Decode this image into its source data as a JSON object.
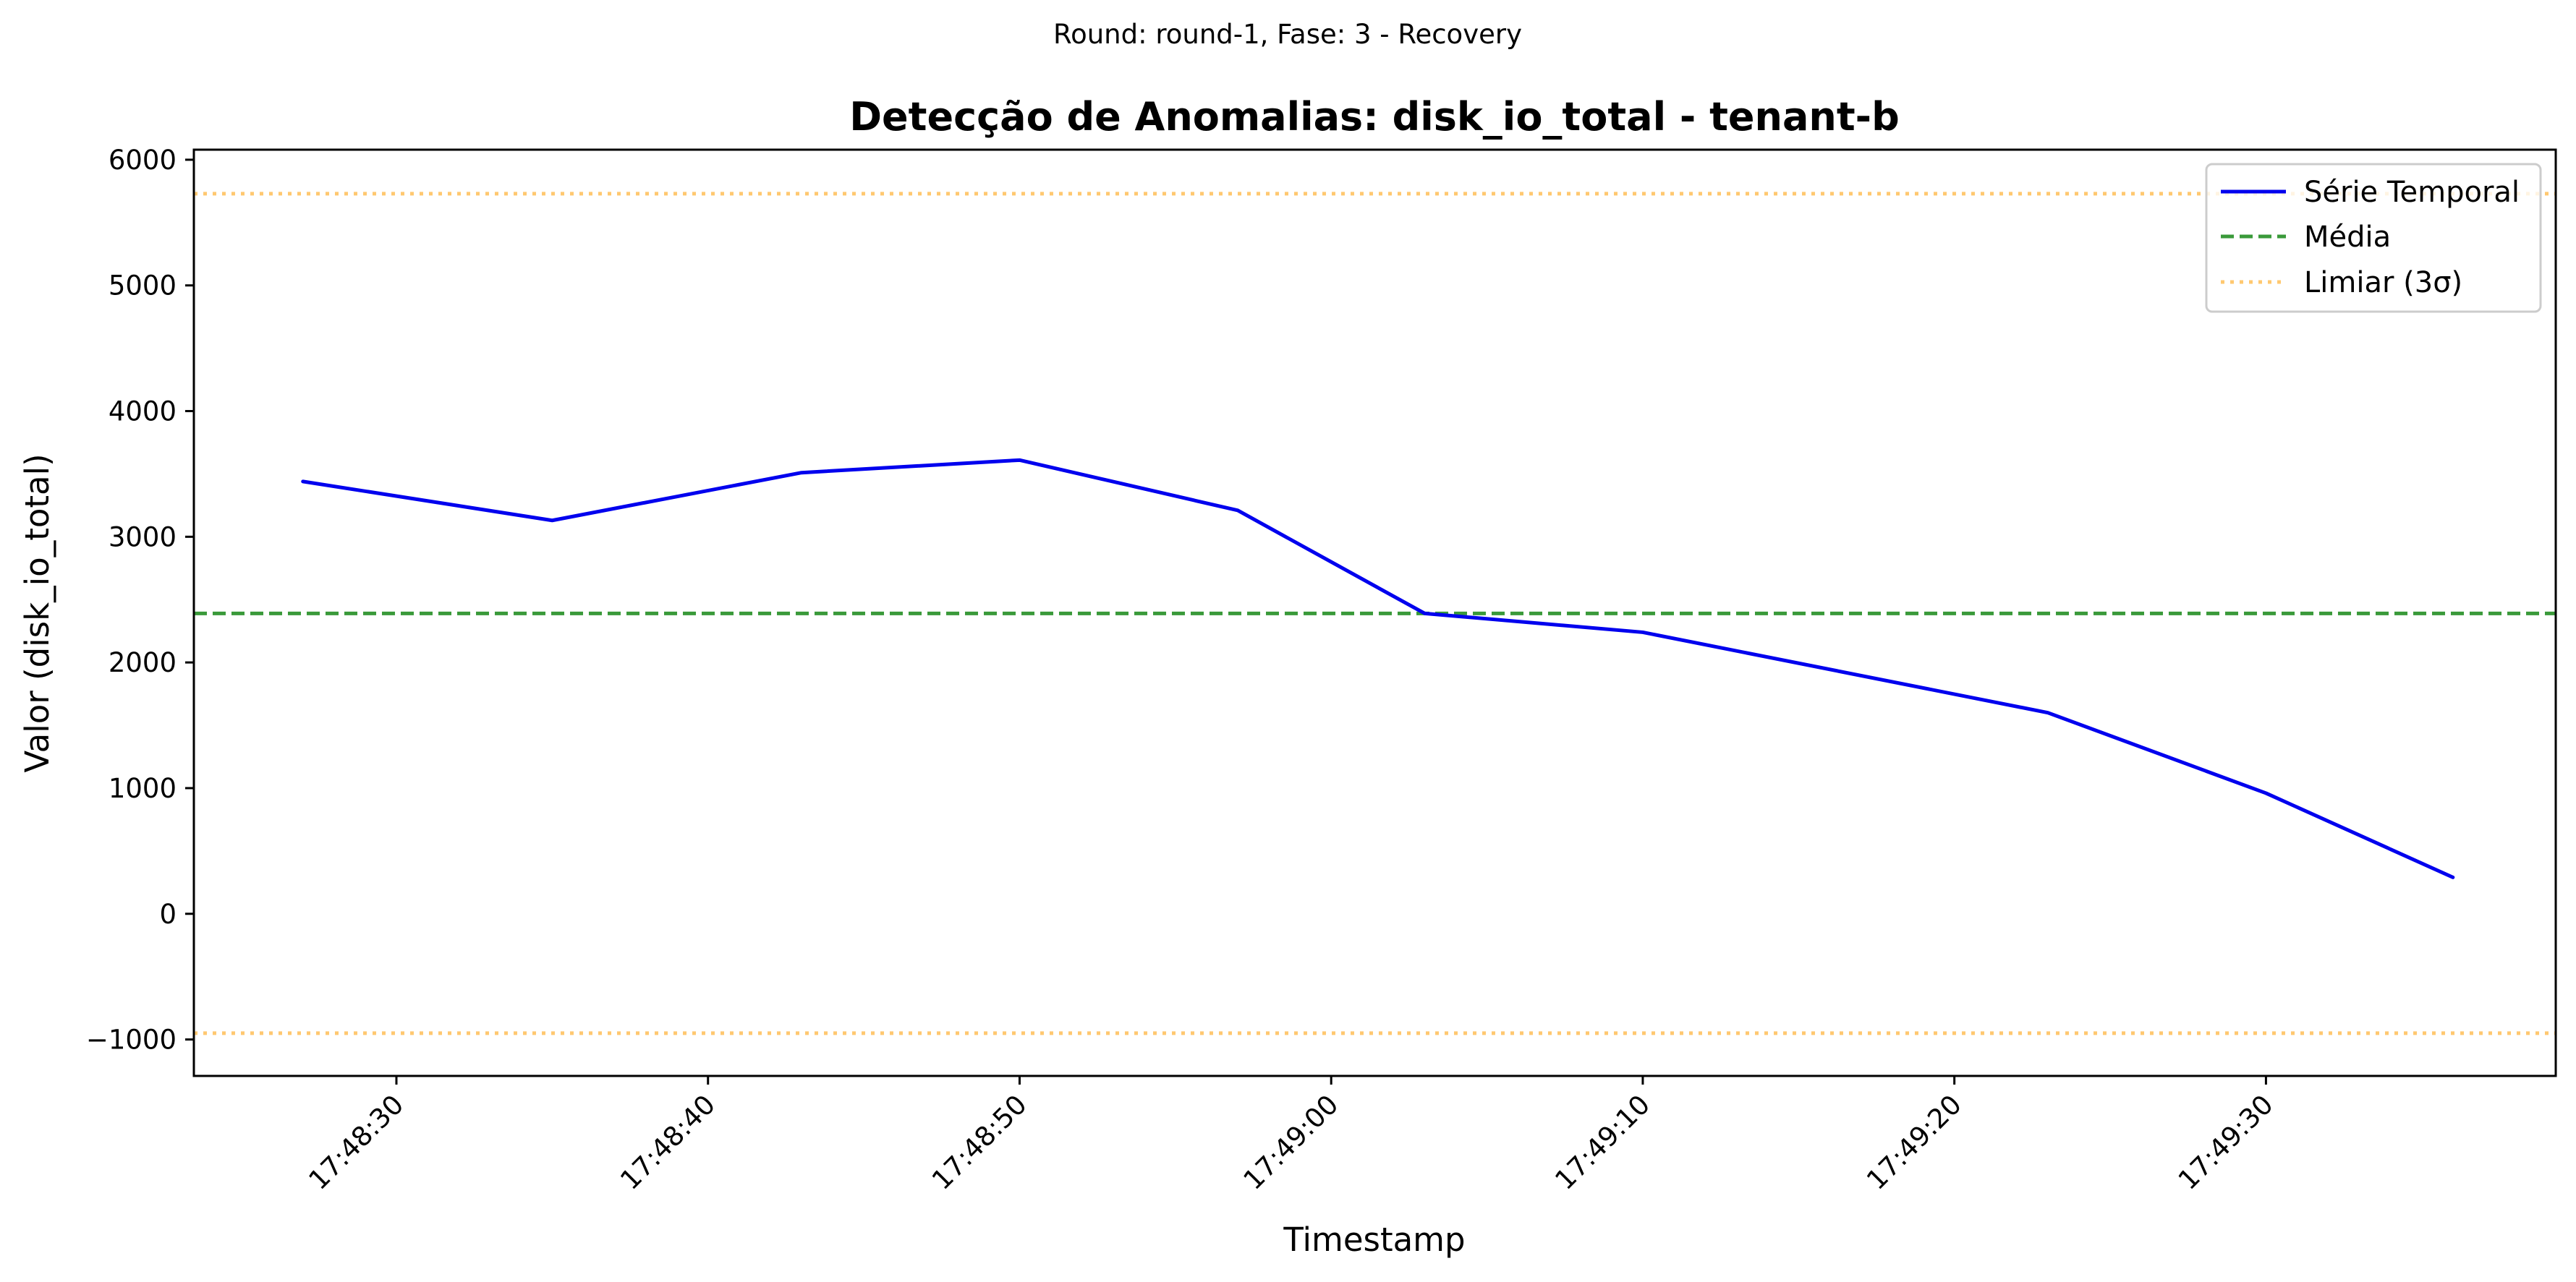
{
  "chart_data": {
    "type": "line",
    "suptitle": "Round: round-1, Fase: 3 - Recovery",
    "title": "Detecção de Anomalias: disk_io_total - tenant-b",
    "xlabel": "Timestamp",
    "ylabel": "Valor (disk_io_total)",
    "x_seconds": [
      27,
      35,
      43,
      50,
      57,
      63,
      70,
      83,
      90,
      96
    ],
    "y_ticks": [
      6000,
      5000,
      4000,
      3000,
      2000,
      1000,
      0,
      -1000
    ],
    "y_tick_labels": [
      "6000",
      "5000",
      "4000",
      "3000",
      "2000",
      "1000",
      "0",
      "−1000"
    ],
    "x_ticks": [
      30,
      40,
      50,
      60,
      70,
      80,
      90
    ],
    "x_tick_labels": [
      "17:48:30",
      "17:48:40",
      "17:48:50",
      "17:49:00",
      "17:49:10",
      "17:49:20",
      "17:49:30"
    ],
    "ylim": [
      -1290,
      6080
    ],
    "xlim": [
      23.5,
      99.3
    ],
    "series": [
      {
        "name": "Série Temporal",
        "style": "solid",
        "color": "#0000ee",
        "x": [
          "17:48:27",
          "17:48:35",
          "17:48:43",
          "17:48:50",
          "17:48:57",
          "17:49:03",
          "17:49:10",
          "17:49:23",
          "17:49:30",
          "17:49:36"
        ],
        "values": [
          3440,
          3130,
          3510,
          3610,
          3210,
          2390,
          2240,
          1600,
          960,
          290
        ]
      }
    ],
    "reference_lines": [
      {
        "name": "Média",
        "value": 2390,
        "style": "dashed",
        "color": "#3a9a3a"
      },
      {
        "name": "Limiar (3σ)",
        "value": 5730,
        "style": "dotted",
        "color": "#ffc870"
      },
      {
        "name": "Limiar (3σ)",
        "value": -950,
        "style": "dotted",
        "color": "#ffc870",
        "show_in_legend": false
      }
    ],
    "legend_position": "upper right",
    "grid": false
  }
}
